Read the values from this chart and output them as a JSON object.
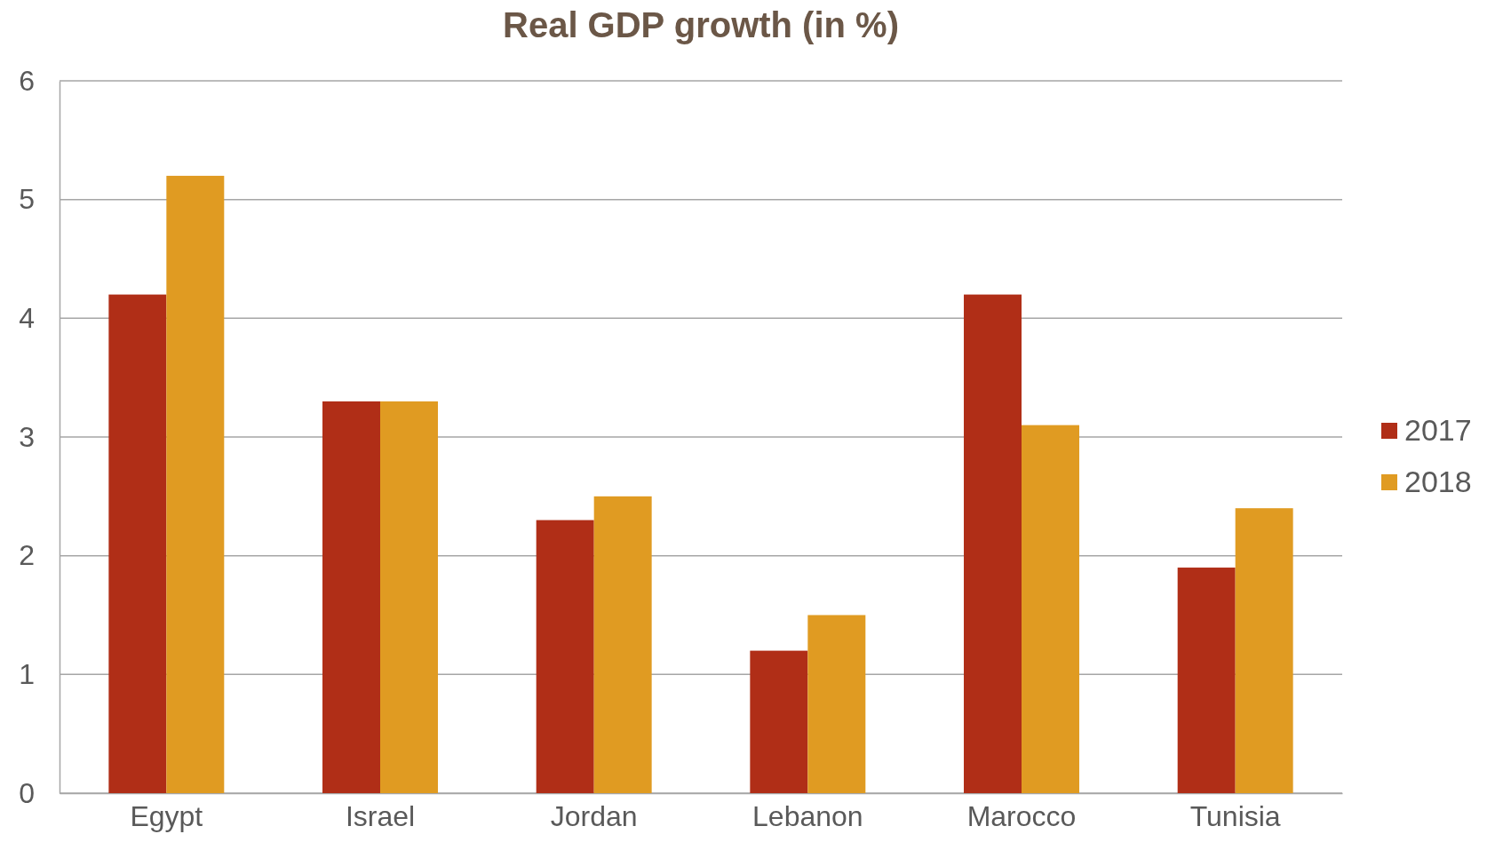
{
  "chart_data": {
    "type": "bar",
    "title": "Real GDP growth (in %)",
    "categories": [
      "Egypt",
      "Israel",
      "Jordan",
      "Lebanon",
      "Marocco",
      "Tunisia"
    ],
    "series": [
      {
        "name": "2017",
        "color": "#b02e17",
        "values": [
          4.2,
          3.3,
          2.3,
          1.2,
          4.2,
          1.9
        ]
      },
      {
        "name": "2018",
        "color": "#e09b22",
        "values": [
          5.2,
          3.3,
          2.5,
          1.5,
          3.1,
          2.4
        ]
      }
    ],
    "ylim": [
      0,
      6
    ],
    "yticks": [
      0,
      1,
      2,
      3,
      4,
      5,
      6
    ],
    "grid": "y",
    "legend": "right"
  }
}
